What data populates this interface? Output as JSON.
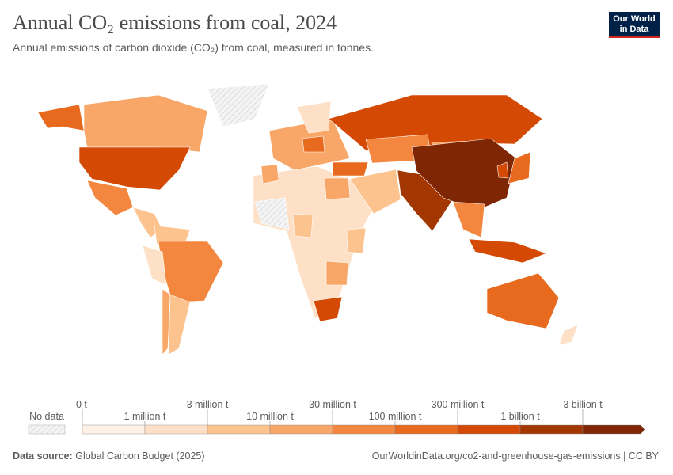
{
  "header": {
    "title": "Annual CO₂ emissions from coal, 2024",
    "subtitle": "Annual emissions of carbon dioxide (CO₂) from coal, measured in tonnes.",
    "logo": [
      "Our World",
      "in Data"
    ]
  },
  "legend": {
    "no_data": "No data",
    "ticks": [
      {
        "value": 0,
        "label": "0 t"
      },
      {
        "value": 1000000,
        "label": "1 million t"
      },
      {
        "value": 3000000,
        "label": "3 million t"
      },
      {
        "value": 10000000,
        "label": "10 million t"
      },
      {
        "value": 30000000,
        "label": "30 million t"
      },
      {
        "value": 100000000,
        "label": "100 million t"
      },
      {
        "value": 300000000,
        "label": "300 million t"
      },
      {
        "value": 1000000000,
        "label": "1 billion t"
      },
      {
        "value": 3000000000,
        "label": "3 billion t"
      }
    ],
    "colors": [
      "#fef0e6",
      "#fde0c6",
      "#fcc38f",
      "#f8a769",
      "#f3873f",
      "#e86a1f",
      "#d44a05",
      "#a33702",
      "#7f2704"
    ]
  },
  "footer": {
    "source_label": "Data source:",
    "source": "Global Carbon Budget (2025)",
    "url": "OurWorldinData.org/co2-and-greenhouse-gas-emissions | CC BY"
  }
}
